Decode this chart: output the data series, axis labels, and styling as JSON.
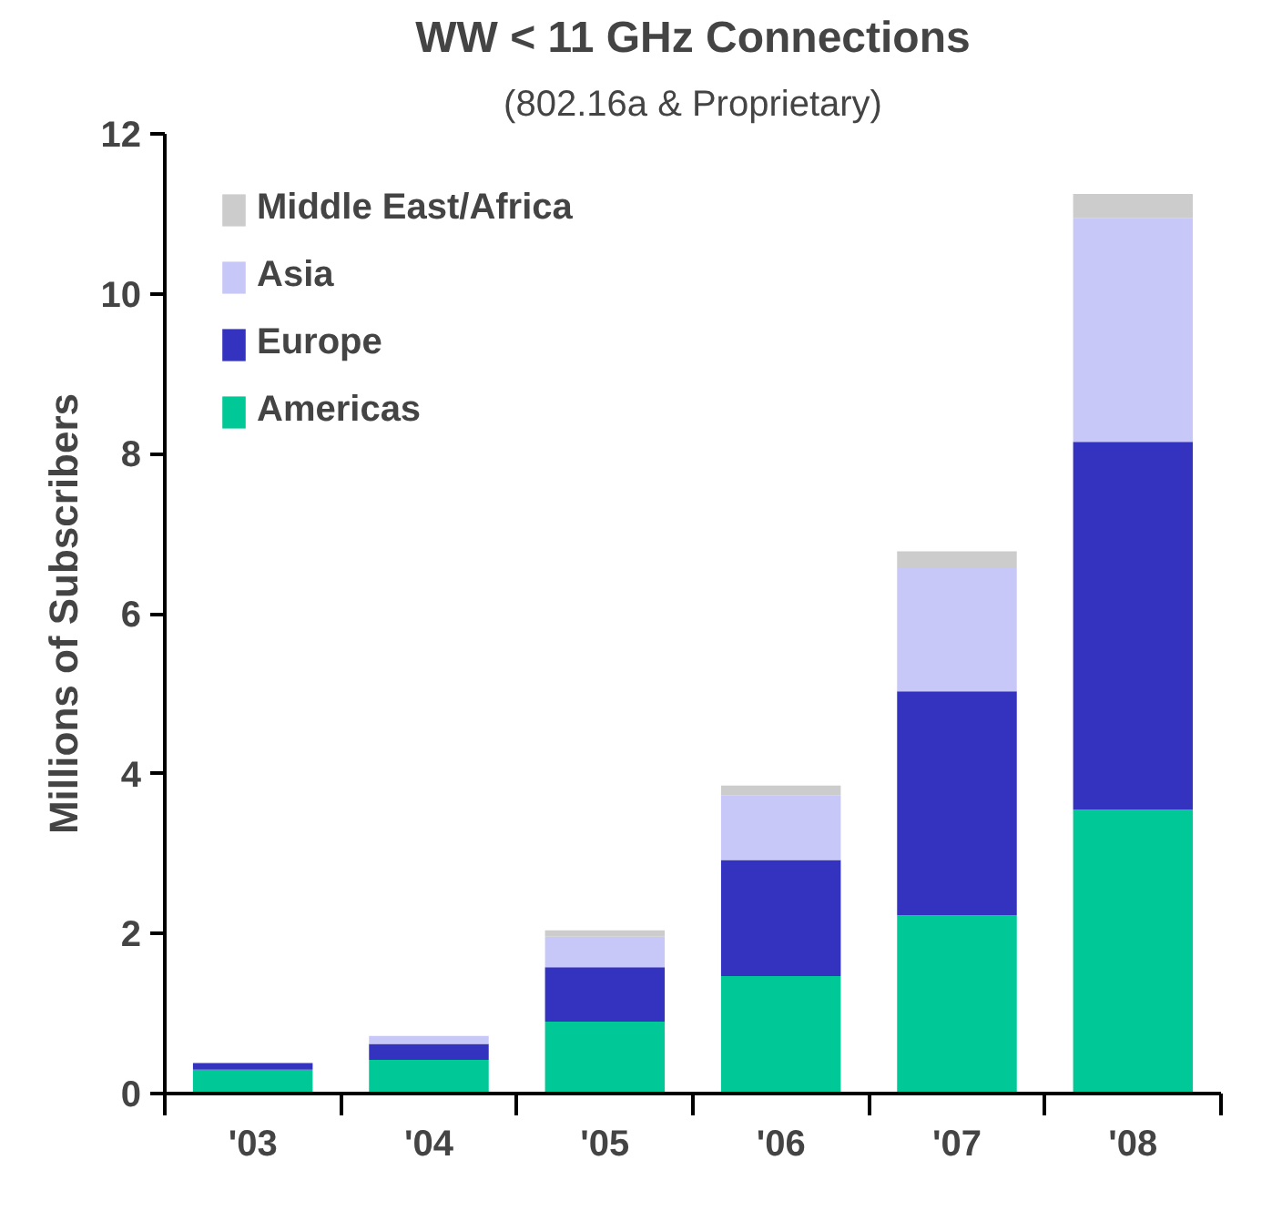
{
  "chart_data": {
    "type": "bar",
    "title": "WW < 11 GHz Connections",
    "subtitle": "(802.16a & Proprietary)",
    "ylabel": "Millions of Subscribers",
    "categories": [
      "'03",
      "'04",
      "'05",
      "'06",
      "'07",
      "'08"
    ],
    "stacked": true,
    "series": [
      {
        "name": "Americas",
        "color": "#00c896",
        "values": [
          0.3,
          0.42,
          0.9,
          1.47,
          2.23,
          3.55
        ]
      },
      {
        "name": "Europe",
        "color": "#3333c0",
        "values": [
          0.08,
          0.2,
          0.68,
          1.45,
          2.8,
          4.6
        ]
      },
      {
        "name": "Asia",
        "color": "#c8c8f8",
        "values": [
          null,
          0.1,
          0.38,
          0.81,
          1.54,
          2.8
        ]
      },
      {
        "name": "Middle East/Africa",
        "color": "#cccccc",
        "values": [
          null,
          null,
          0.08,
          0.12,
          0.21,
          0.3
        ]
      }
    ],
    "ylim": [
      0,
      12
    ],
    "yticks": [
      0,
      2,
      4,
      6,
      8,
      10,
      12
    ],
    "grid": false,
    "legend": "top left"
  }
}
